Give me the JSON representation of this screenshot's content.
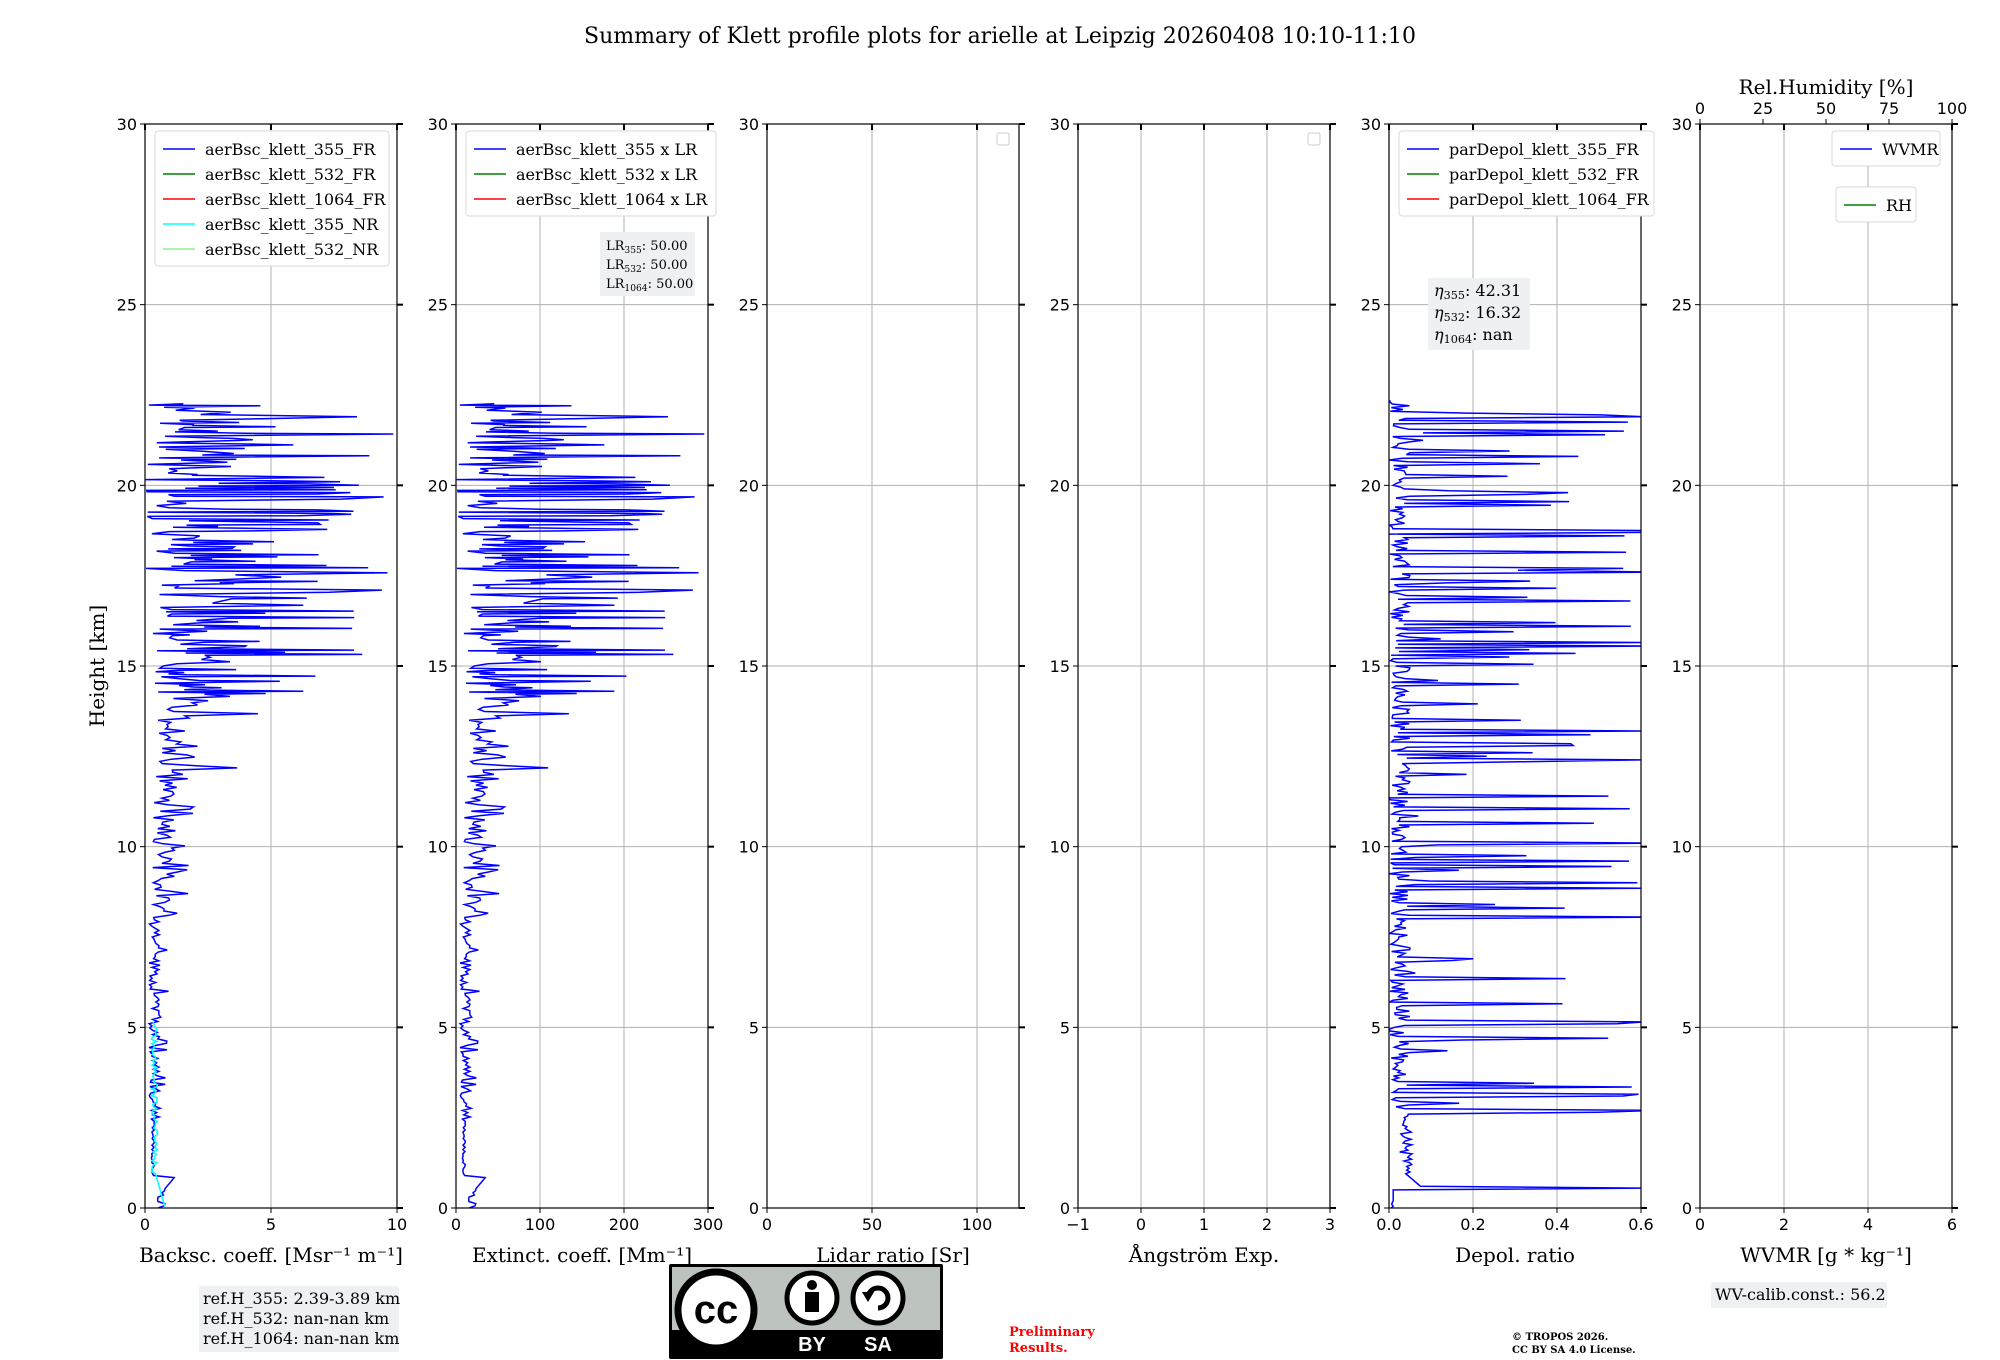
{
  "title": "Summary of Klett profile plots for arielle at Leipzig 20260408 10:10-11:10",
  "colors": {
    "blue": "#0000ff",
    "green": "#008000",
    "red": "#ff0000",
    "cyan": "#00ffff",
    "lightgreen": "#90ee90"
  },
  "chart_data": [
    {
      "type": "line",
      "id": "backscatter",
      "xlabel": "Backsc. coeff. [Msr⁻¹ m⁻¹]",
      "ylabel": "Height [km]",
      "xlim": [
        0,
        10
      ],
      "ylim": [
        0,
        30
      ],
      "xticks": [
        0,
        5,
        10
      ],
      "yticks": [
        0,
        5,
        10,
        15,
        20,
        25,
        30
      ],
      "legend": [
        "aerBsc_klett_355_FR",
        "aerBsc_klett_532_FR",
        "aerBsc_klett_1064_FR",
        "aerBsc_klett_355_NR",
        "aerBsc_klett_532_NR"
      ],
      "legend_colors": [
        "blue",
        "green",
        "red",
        "cyan",
        "lightgreen"
      ],
      "series": [
        {
          "name": "aerBsc_klett_355_FR",
          "color": "blue",
          "profile": "bsc355",
          "scale": 1
        },
        {
          "name": "aerBsc_klett_355_NR",
          "color": "cyan",
          "profile": "nr355",
          "scale": 1
        }
      ],
      "note": [
        "ref.H_355: 2.39-3.89 km",
        "ref.H_532: nan-nan km",
        "ref.H_1064: nan-nan km"
      ]
    },
    {
      "type": "line",
      "id": "extinction",
      "xlabel": "Extinct. coeff. [Mm⁻¹]",
      "xlim": [
        0,
        300
      ],
      "ylim": [
        0,
        30
      ],
      "xticks": [
        0,
        100,
        200,
        300
      ],
      "yticks": [
        0,
        5,
        10,
        15,
        20,
        25,
        30
      ],
      "legend": [
        "aerBsc_klett_355 x LR",
        "aerBsc_klett_532 x LR",
        "aerBsc_klett_1064 x LR"
      ],
      "legend_colors": [
        "blue",
        "green",
        "red"
      ],
      "series": [
        {
          "name": "aerBsc_klett_355 x LR",
          "color": "blue",
          "profile": "bsc355",
          "scale": 30
        }
      ],
      "annotation": [
        "LR355: 50.00",
        "LR532: 50.00",
        "LR1064: 50.00"
      ]
    },
    {
      "type": "line",
      "id": "lidarratio",
      "xlabel": "Lidar ratio [Sr]",
      "xlim": [
        0,
        120
      ],
      "ylim": [
        0,
        30
      ],
      "xticks": [
        0,
        50,
        100
      ],
      "yticks": [
        0,
        5,
        10,
        15,
        20,
        25,
        30
      ],
      "legend": [],
      "series": []
    },
    {
      "type": "line",
      "id": "angstrom",
      "xlabel": "Ångström Exp.",
      "xlim": [
        -1,
        3
      ],
      "ylim": [
        0,
        30
      ],
      "xticks": [
        -1,
        0,
        1,
        2,
        3
      ],
      "yticks": [
        0,
        5,
        10,
        15,
        20,
        25,
        30
      ],
      "legend": [],
      "series": []
    },
    {
      "type": "line",
      "id": "depol",
      "xlabel": "Depol. ratio",
      "xlim": [
        0,
        0.6
      ],
      "ylim": [
        0,
        30
      ],
      "xticks": [
        0.0,
        0.2,
        0.4,
        0.6
      ],
      "yticks": [
        0,
        5,
        10,
        15,
        20,
        25,
        30
      ],
      "legend": [
        "parDepol_klett_355_FR",
        "parDepol_klett_532_FR",
        "parDepol_klett_1064_FR"
      ],
      "legend_colors": [
        "blue",
        "green",
        "red"
      ],
      "series": [
        {
          "name": "parDepol_klett_355_FR",
          "color": "blue",
          "profile": "depol355",
          "scale": 1
        }
      ],
      "annotation": [
        "η355: 42.31",
        "η532: 16.32",
        "η1064: nan"
      ]
    },
    {
      "type": "line",
      "id": "wvmr",
      "xlabel": "WVMR [g * kg⁻¹]",
      "top_xlabel": "Rel.Humidity [%]",
      "xlim": [
        0,
        6
      ],
      "ylim": [
        0,
        30
      ],
      "xticks": [
        0,
        2,
        4,
        6
      ],
      "top_xticks": [
        0,
        25,
        50,
        75,
        100
      ],
      "yticks": [
        0,
        5,
        10,
        15,
        20,
        25,
        30
      ],
      "legend": [
        "WVMR"
      ],
      "legend_colors": [
        "blue"
      ],
      "legend2": [
        "RH"
      ],
      "legend2_colors": [
        "green"
      ],
      "series": [],
      "note": [
        "WV-calib.const.: 56.2"
      ]
    }
  ],
  "license": {
    "cc": "cc",
    "by": "BY",
    "sa": "SA"
  },
  "preliminary": [
    "Preliminary",
    "Results."
  ],
  "copyright": [
    "© TROPOS 2026.",
    "CC BY SA 4.0 License."
  ]
}
